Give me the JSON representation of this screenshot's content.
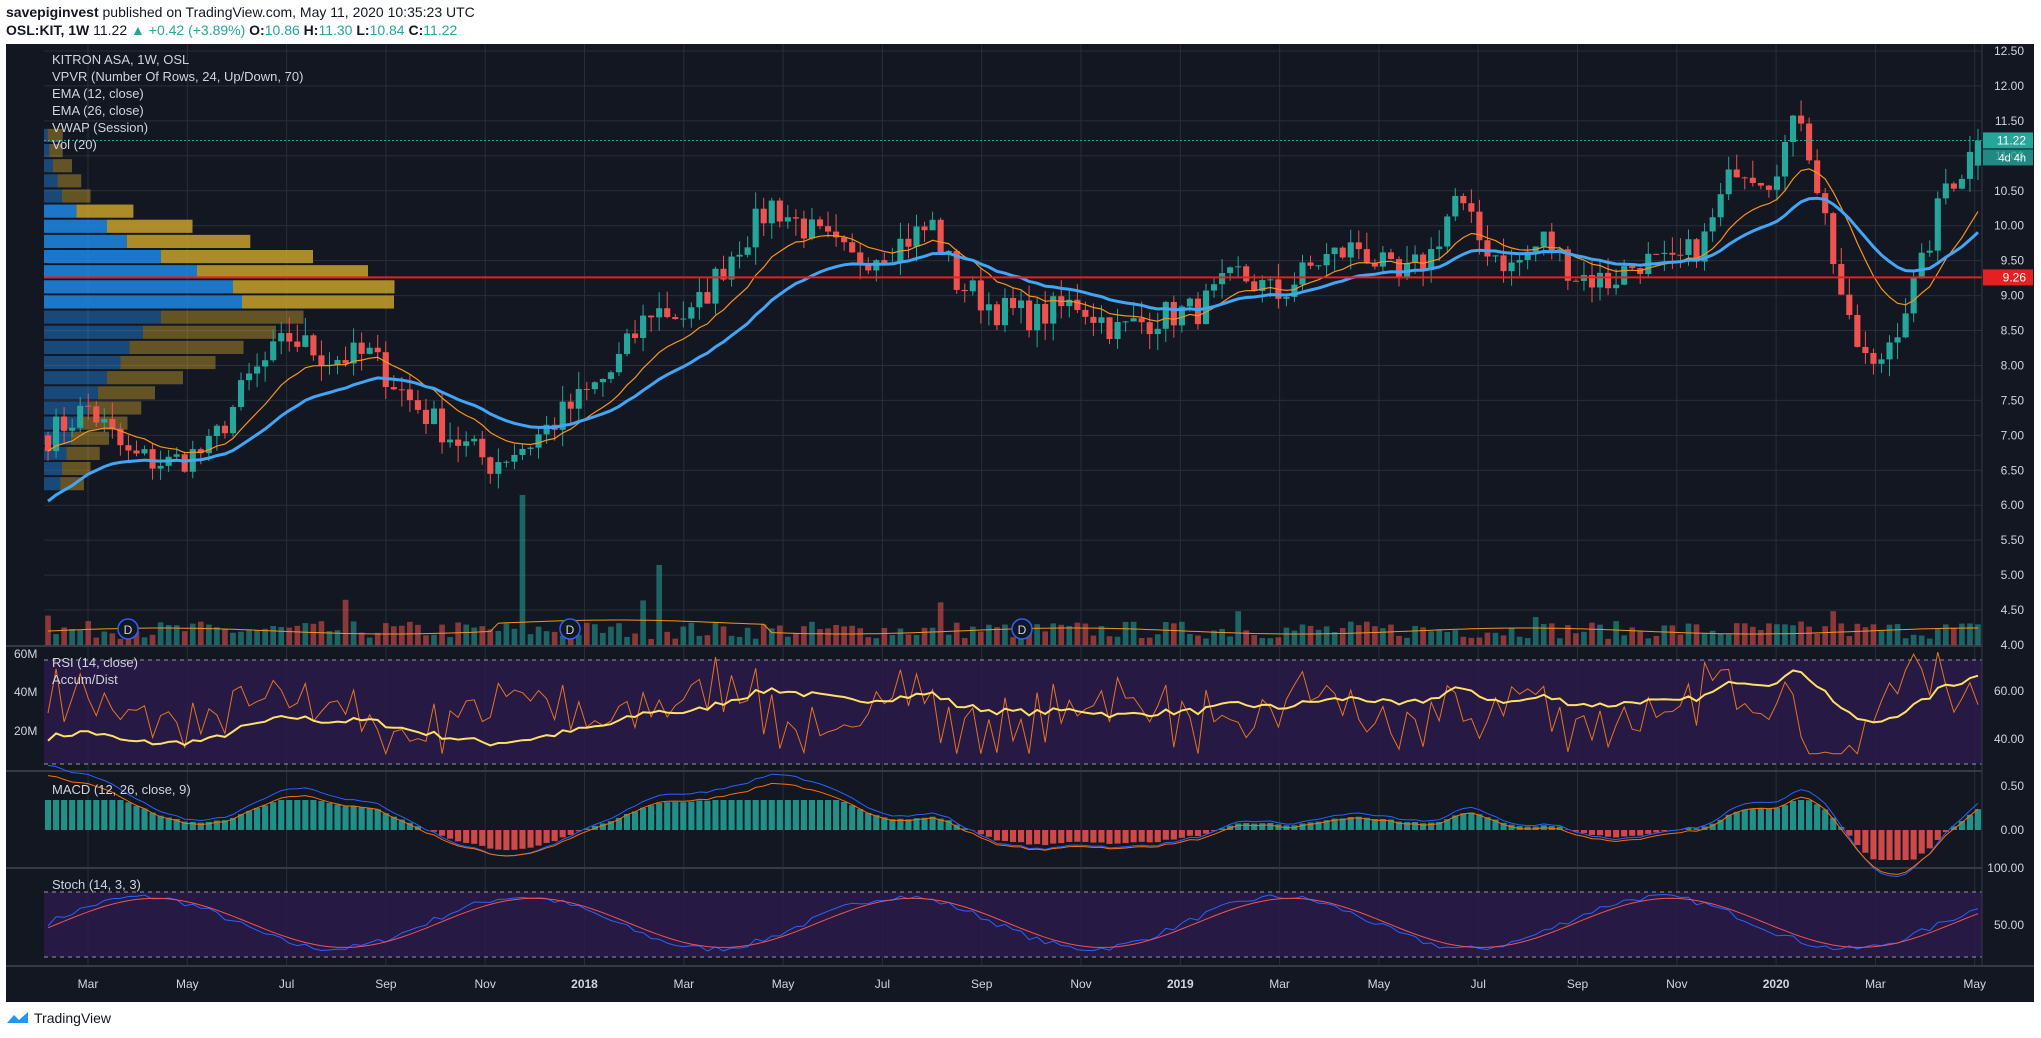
{
  "header": {
    "author": "savepiginvest",
    "published_text": "published on TradingView.com, May 11, 2020 10:35:23 UTC",
    "symbol": "OSL:KIT, 1W",
    "last": "11.22",
    "change": "▲ +0.42 (+3.89%)",
    "o_label": "O:",
    "o_value": "10.86",
    "h_label": "H:",
    "h_value": "11.30",
    "l_label": "L:",
    "l_value": "10.84",
    "c_label": "C:",
    "c_value": "11.22"
  },
  "legend": {
    "title": "KITRON ASA, 1W, OSL",
    "items": [
      "VPVR (Number Of Rows, 24, Up/Down, 70)",
      "EMA (12, close)",
      "EMA (26, close)",
      "VWAP (Session)",
      "Vol (20)"
    ]
  },
  "footer": {
    "brand": "TradingView"
  },
  "colors": {
    "bg": "#131722",
    "up": "#26a69a",
    "down": "#ef5350",
    "ema12": "#f7931a",
    "ema26": "#42a5f5",
    "hline": "#e62020",
    "vpvr_up": "#1e88e5",
    "vpvr_down": "#c8a02a"
  },
  "chart_data": [
    {
      "type": "candlestick",
      "title": "KITRON ASA, 1W, OSL",
      "ylim": [
        4.0,
        12.6
      ],
      "y_ticks": [
        "12.50",
        "12.00",
        "11.50",
        "11.00",
        "10.50",
        "10.00",
        "9.50",
        "9.00",
        "8.50",
        "8.00",
        "7.50",
        "7.00",
        "6.50",
        "6.00",
        "5.50",
        "5.00",
        "4.50",
        "4.00"
      ],
      "x_labels": [
        "Mar",
        "May",
        "Jul",
        "Sep",
        "Nov",
        "2018",
        "Mar",
        "May",
        "Jul",
        "Sep",
        "Nov",
        "2019",
        "Mar",
        "May",
        "Jul",
        "Sep",
        "Nov",
        "2020",
        "Mar",
        "May"
      ],
      "anchors": [
        [
          0,
          7.0
        ],
        [
          5,
          7.4
        ],
        [
          10,
          6.7
        ],
        [
          15,
          6.6
        ],
        [
          20,
          6.8
        ],
        [
          25,
          7.8
        ],
        [
          30,
          8.4
        ],
        [
          35,
          8.1
        ],
        [
          40,
          8.15
        ],
        [
          45,
          7.5
        ],
        [
          50,
          7.0
        ],
        [
          55,
          6.6
        ],
        [
          60,
          6.9
        ],
        [
          65,
          7.4
        ],
        [
          70,
          7.9
        ],
        [
          75,
          8.8
        ],
        [
          80,
          8.7
        ],
        [
          85,
          9.6
        ],
        [
          90,
          10.3
        ],
        [
          95,
          9.9
        ],
        [
          100,
          9.5
        ],
        [
          105,
          9.7
        ],
        [
          110,
          10.0
        ],
        [
          113,
          9.2
        ],
        [
          118,
          8.8
        ],
        [
          123,
          8.7
        ],
        [
          128,
          8.9
        ],
        [
          133,
          8.5
        ],
        [
          138,
          8.7
        ],
        [
          143,
          8.8
        ],
        [
          148,
          9.3
        ],
        [
          153,
          9.0
        ],
        [
          158,
          9.5
        ],
        [
          163,
          9.7
        ],
        [
          168,
          9.2
        ],
        [
          172,
          9.6
        ],
        [
          175,
          10.4
        ],
        [
          178,
          9.8
        ],
        [
          182,
          9.4
        ],
        [
          186,
          9.8
        ],
        [
          190,
          9.3
        ],
        [
          194,
          9.2
        ],
        [
          198,
          9.5
        ],
        [
          202,
          9.4
        ],
        [
          206,
          9.8
        ],
        [
          210,
          10.9
        ],
        [
          214,
          10.7
        ],
        [
          218,
          11.6
        ],
        [
          221,
          10.1
        ],
        [
          224,
          8.5
        ],
        [
          227,
          7.9
        ],
        [
          230,
          8.6
        ],
        [
          233,
          9.4
        ],
        [
          236,
          10.6
        ],
        [
          238,
          10.8
        ],
        [
          240,
          11.22
        ]
      ],
      "last_price": "11.22",
      "countdown": "4d 4h",
      "horizontal_level": "9.26",
      "dividend_markers": [
        "D",
        "D",
        "D"
      ]
    },
    {
      "type": "line",
      "title": "RSI (14, close)",
      "secondary_title": "Accum/Dist",
      "y_ticks_right": [
        "60.00",
        "40.00"
      ],
      "y_ticks_left": [
        "60M",
        "40M",
        "20M"
      ]
    },
    {
      "type": "histogram",
      "title": "MACD (12, 26, close, 9)",
      "y_ticks": [
        "0.50",
        "0.00"
      ]
    },
    {
      "type": "line",
      "title": "Stoch (14, 3, 3)",
      "y_ticks": [
        "100.00",
        "50.00"
      ]
    }
  ]
}
